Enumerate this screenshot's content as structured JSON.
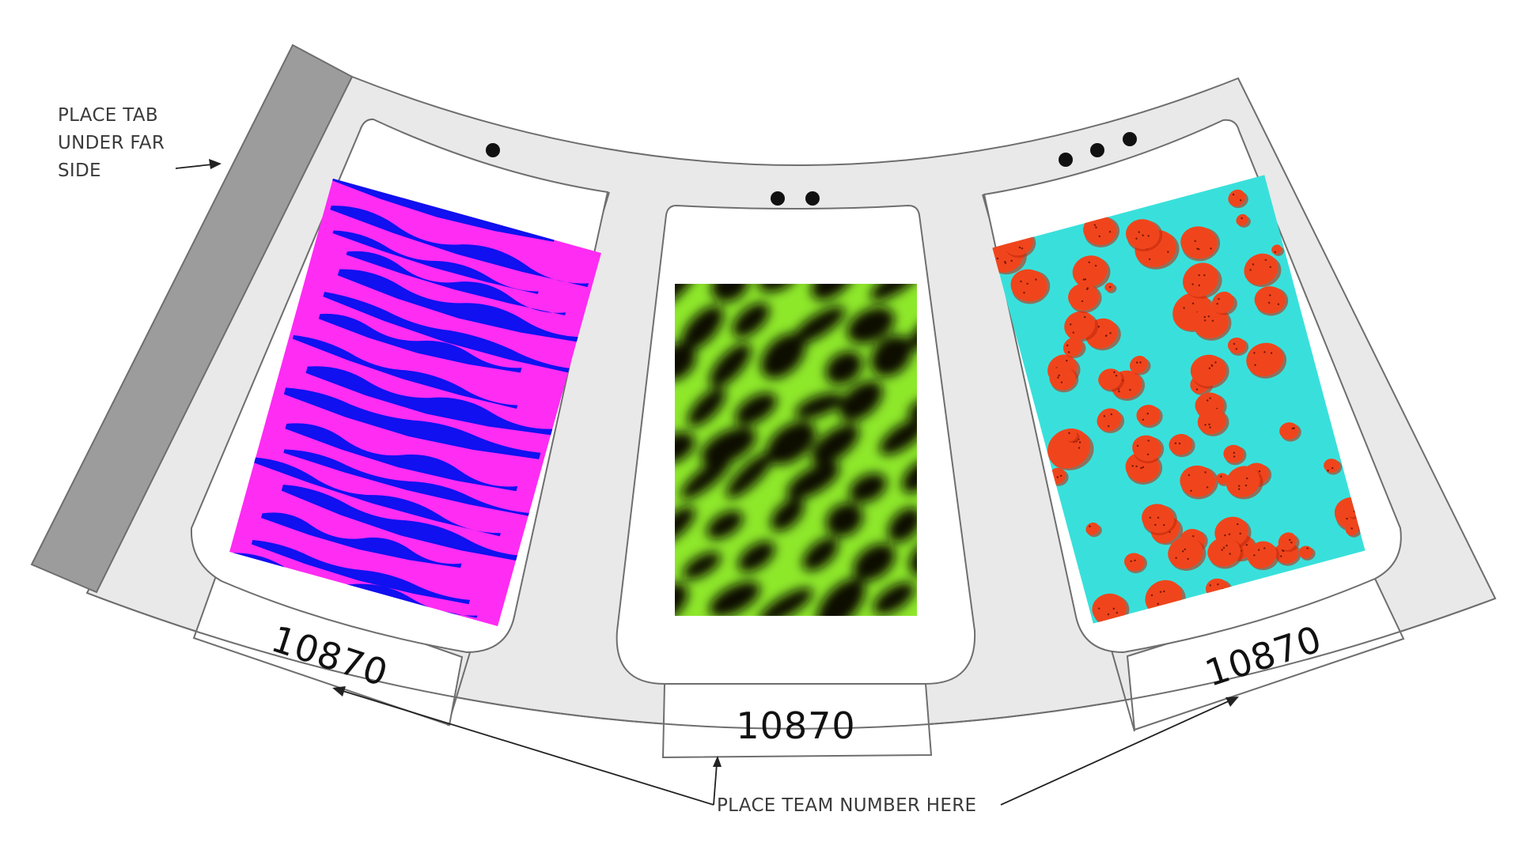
{
  "instructions": {
    "tab_note": [
      "PLACE TAB",
      "UNDER FAR",
      "SIDE"
    ],
    "team_number_note": "PLACE TEAM NUMBER HERE"
  },
  "panels": [
    {
      "id": "left",
      "dots": 1,
      "team_number": "10870",
      "pattern": "zebra-stripes",
      "colors": {
        "base": "#ff2cf3",
        "accent": "#1010f0"
      }
    },
    {
      "id": "center",
      "dots": 2,
      "team_number": "10870",
      "pattern": "glowing-cells",
      "colors": {
        "base": "#0b1005",
        "accent": "#8ee82a"
      }
    },
    {
      "id": "right",
      "dots": 3,
      "team_number": "10870",
      "pattern": "strawberry-spots",
      "colors": {
        "base": "#39e0db",
        "accent": "#f0451c"
      }
    }
  ],
  "colors": {
    "band": "#e9e9e9",
    "tab": "#9c9c9c",
    "outline": "#6e6e6e",
    "window": "#ffffff"
  }
}
